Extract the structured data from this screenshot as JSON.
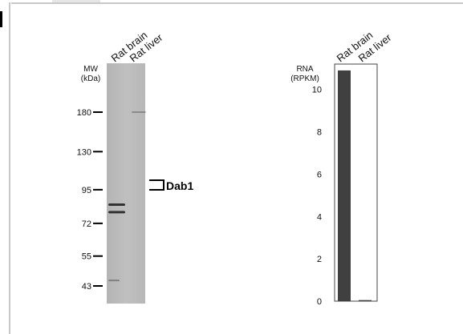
{
  "chart_data": [
    {
      "type": "blot",
      "lanes": [
        "Rat brain",
        "Rat liver"
      ],
      "mw_header": [
        "MW",
        "(kDa)"
      ],
      "markers": [
        180,
        130,
        95,
        72,
        55,
        43
      ],
      "band_label": "Dab1",
      "bands": [
        {
          "lane": "Rat brain",
          "kda": 84,
          "intensity": "strong"
        },
        {
          "lane": "Rat brain",
          "kda": 79,
          "intensity": "strong"
        },
        {
          "lane": "Rat brain",
          "kda": 45,
          "intensity": "weak"
        },
        {
          "lane": "Rat liver",
          "kda": 180,
          "intensity": "faint"
        }
      ]
    },
    {
      "type": "bar",
      "categories": [
        "Rat brain",
        "Rat liver"
      ],
      "values": [
        10.9,
        0.05
      ],
      "ylabel": [
        "RNA",
        "(RPKM)"
      ],
      "ylim": [
        0,
        11.2
      ],
      "yticks": [
        0,
        2,
        4,
        6,
        8,
        10
      ],
      "bar_color": "#404040"
    }
  ]
}
